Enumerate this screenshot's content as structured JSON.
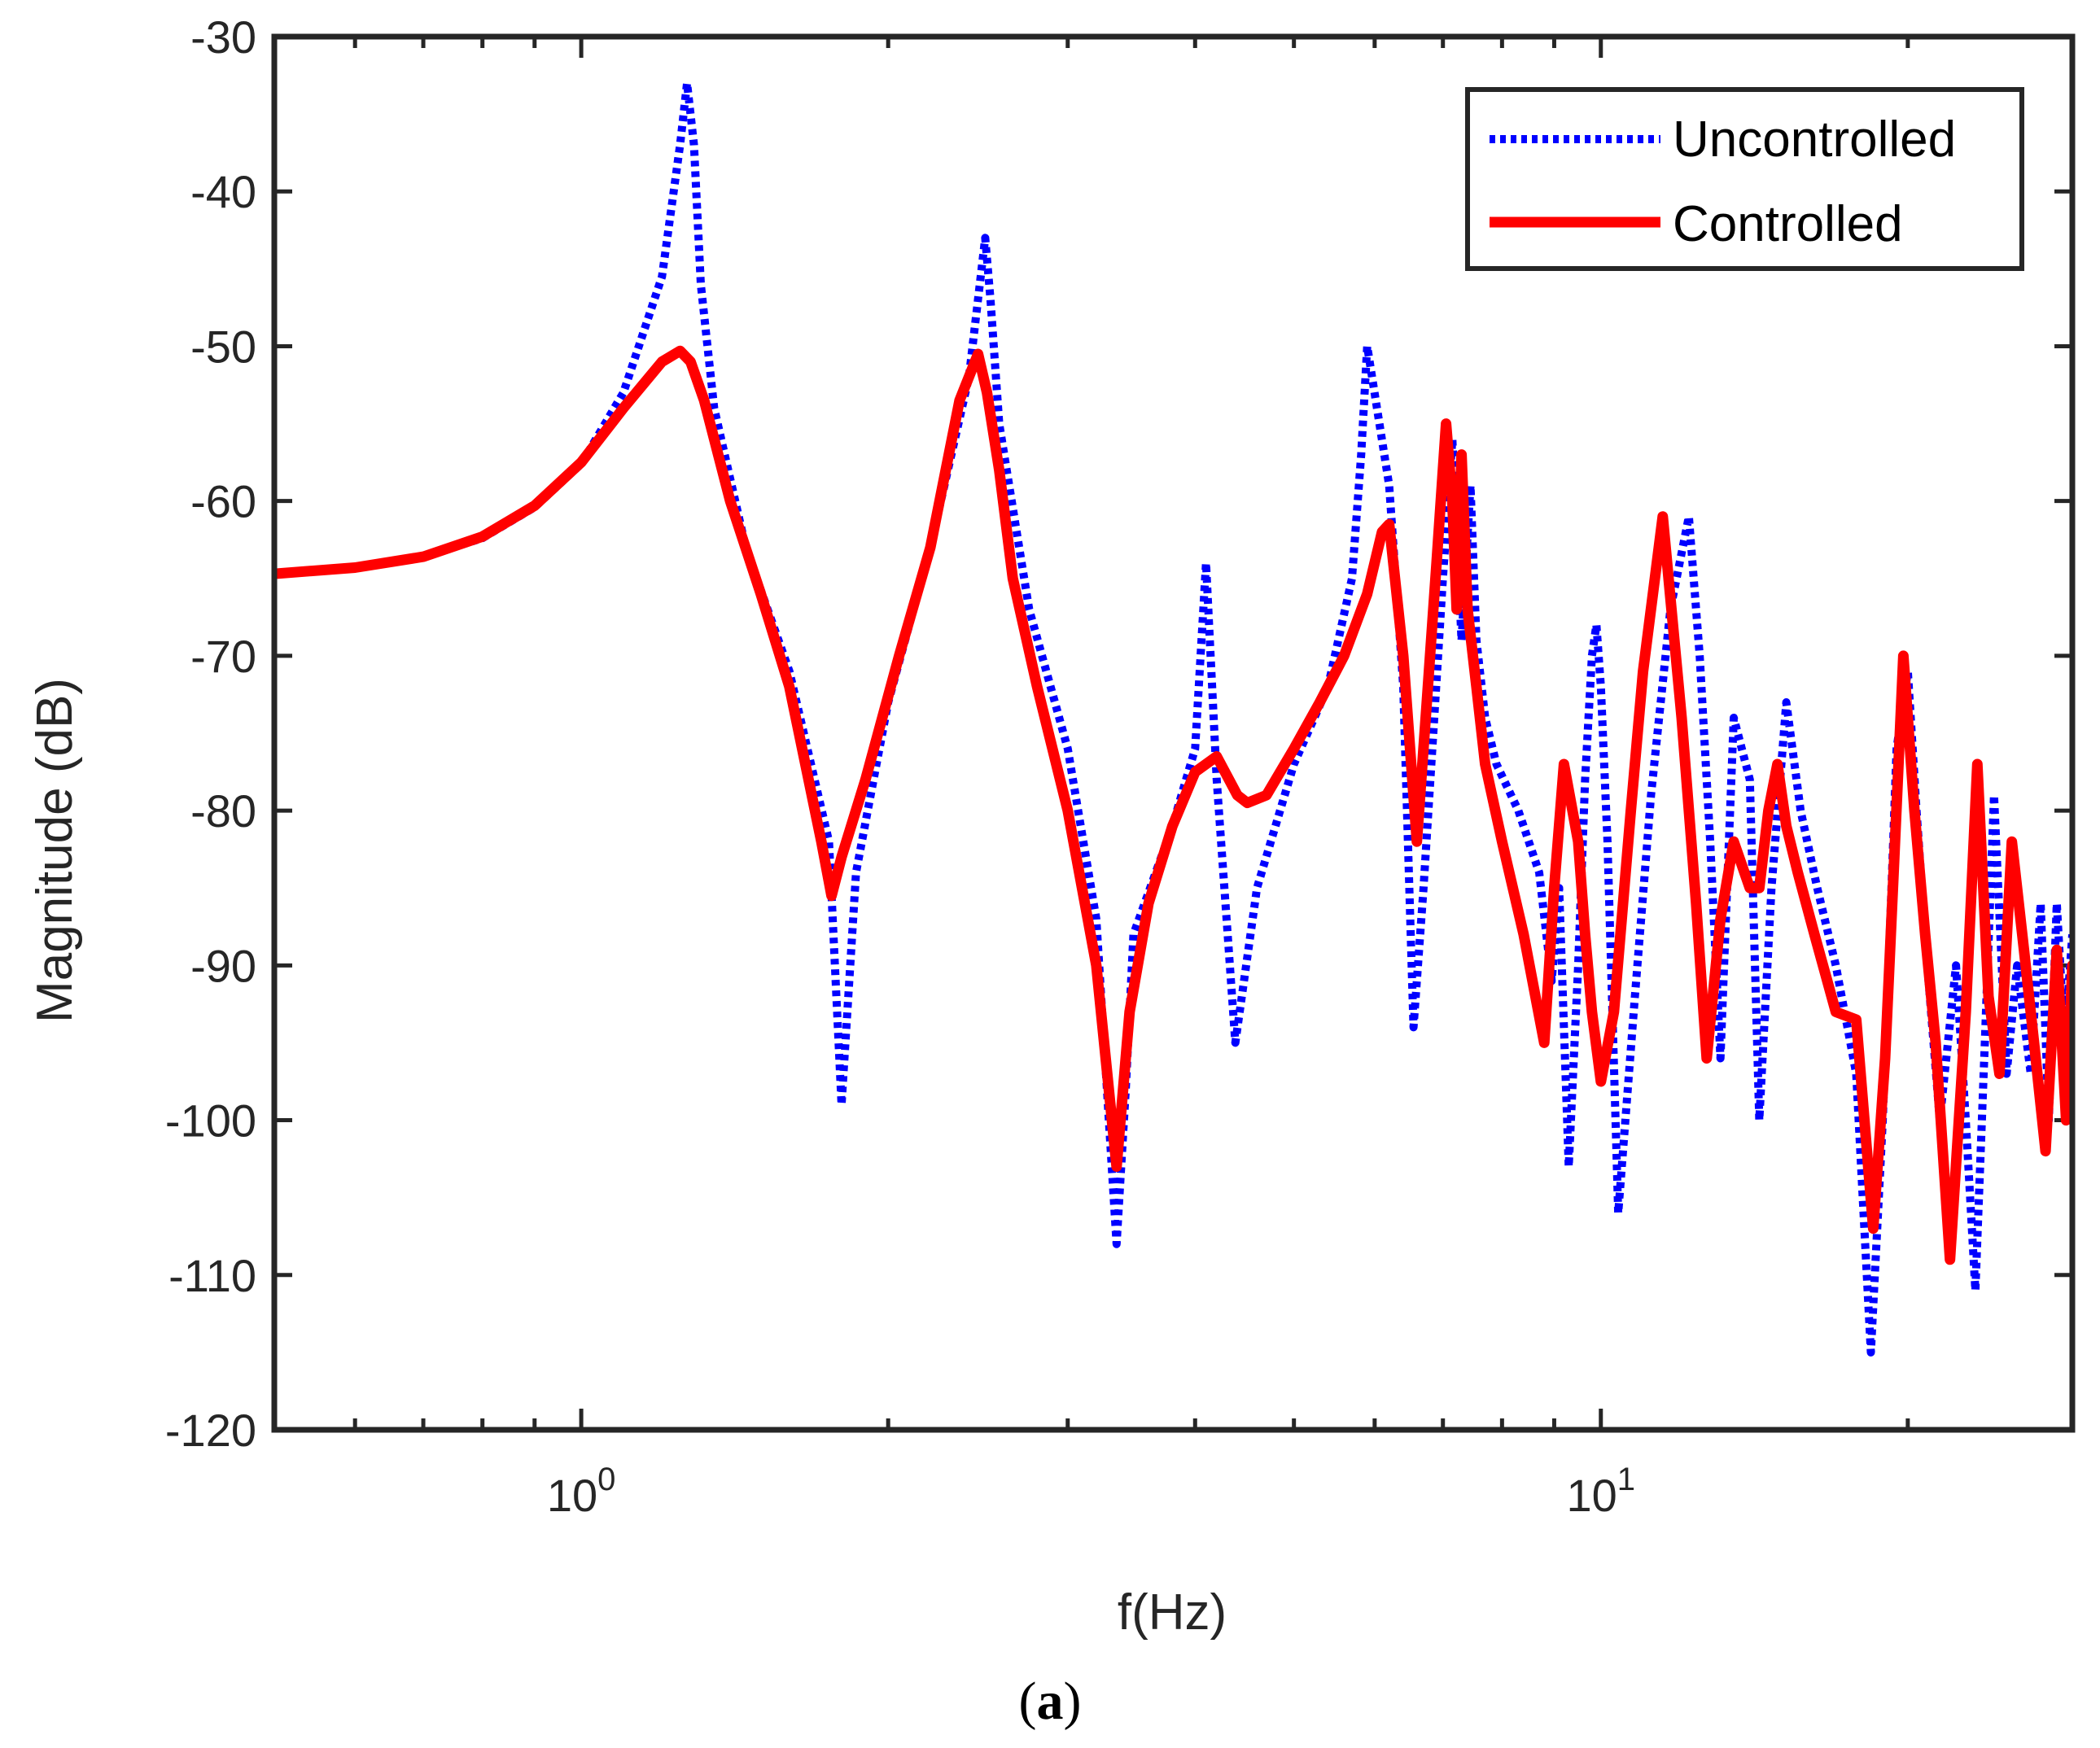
{
  "chart_data": {
    "type": "line",
    "title": "",
    "xlabel": "f(Hz)",
    "ylabel": "Magnitude (dB)",
    "xscale": "log",
    "xlim": [
      0.5,
      29
    ],
    "ylim": [
      -120,
      -30
    ],
    "grid": false,
    "legend_position": "top-right",
    "caption": {
      "open": "(",
      "letter": "a",
      "close": ")"
    },
    "y_ticks": [
      -30,
      -40,
      -50,
      -60,
      -70,
      -80,
      -90,
      -100,
      -110,
      -120
    ],
    "y_tick_labels": [
      "-30",
      "-40",
      "-50",
      "-60",
      "-70",
      "-80",
      "-90",
      "-100",
      "-110",
      "-120"
    ],
    "x_ticks": [
      {
        "value": 1,
        "base": "10",
        "exponent": "0"
      },
      {
        "value": 10,
        "base": "10",
        "exponent": "1"
      }
    ],
    "series": [
      {
        "name": "Uncontrolled",
        "color": "#0000ff",
        "style": "dotted",
        "x": [
          0.5,
          0.6,
          0.7,
          0.8,
          0.9,
          1.0,
          1.1,
          1.2,
          1.25,
          1.27,
          1.29,
          1.31,
          1.35,
          1.45,
          1.6,
          1.75,
          1.8,
          1.86,
          2.0,
          2.2,
          2.4,
          2.49,
          2.52,
          2.57,
          2.75,
          3.0,
          3.2,
          3.35,
          3.42,
          3.48,
          3.8,
          4.0,
          4.1,
          4.2,
          4.38,
          4.6,
          5.0,
          5.4,
          5.7,
          5.82,
          5.9,
          6.2,
          6.4,
          6.55,
          6.7,
          6.85,
          7.0,
          7.15,
          7.3,
          7.45,
          7.55,
          7.7,
          7.9,
          8.3,
          8.7,
          8.95,
          9.1,
          9.3,
          9.5,
          9.65,
          9.8,
          9.9,
          10.0,
          10.15,
          10.4,
          10.8,
          11.2,
          11.7,
          12.2,
          12.5,
          12.8,
          13.1,
          13.5,
          14.0,
          14.3,
          14.7,
          15.2,
          15.7,
          16.3,
          17.0,
          17.8,
          18.4,
          18.9,
          19.2,
          19.5,
          20.0,
          20.4,
          20.9,
          21.5,
          22.3,
          22.8,
          23.3,
          23.8,
          24.3,
          25.0,
          25.6,
          26.4,
          27.0,
          27.5,
          28.0,
          28.5,
          29.0
        ],
        "y": [
          -64.7,
          -64.3,
          -63.6,
          -62.4,
          -60.4,
          -57.6,
          -53.0,
          -45.5,
          -37.0,
          -33.0,
          -37.0,
          -46.0,
          -54.0,
          -63.0,
          -71.0,
          -82.0,
          -99.0,
          -84.0,
          -73.0,
          -63.0,
          -52.0,
          -43.0,
          -47.0,
          -55.0,
          -67.0,
          -76.0,
          -87.0,
          -108.0,
          -98.0,
          -88.0,
          -81.0,
          -76.0,
          -64.0,
          -78.0,
          -95.0,
          -85.0,
          -77.0,
          -72.0,
          -65.0,
          -57.0,
          -50.0,
          -59.0,
          -72.0,
          -94.0,
          -85.0,
          -75.0,
          -65.0,
          -56.0,
          -69.0,
          -59.0,
          -69.0,
          -74.0,
          -77.0,
          -80.0,
          -84.0,
          -91.0,
          -85.0,
          -103.0,
          -90.0,
          -78.0,
          -70.0,
          -68.0,
          -72.0,
          -82.0,
          -106.0,
          -92.0,
          -79.0,
          -67.0,
          -61.0,
          -70.0,
          -82.0,
          -96.0,
          -74.0,
          -78.0,
          -100.0,
          -85.0,
          -73.0,
          -80.0,
          -85.0,
          -90.0,
          -97.0,
          -115.0,
          -100.0,
          -88.0,
          -76.0,
          -71.0,
          -80.0,
          -90.0,
          -100.0,
          -90.0,
          -100.0,
          -111.0,
          -95.0,
          -79.0,
          -97.0,
          -90.0,
          -97.0,
          -86.0,
          -100.0,
          -86.0,
          -95.0,
          -88.0
        ]
      },
      {
        "name": "Controlled",
        "color": "#ff0000",
        "style": "solid",
        "x": [
          0.5,
          0.6,
          0.7,
          0.8,
          0.9,
          1.0,
          1.1,
          1.2,
          1.25,
          1.28,
          1.32,
          1.4,
          1.5,
          1.6,
          1.72,
          1.76,
          1.8,
          1.9,
          2.05,
          2.2,
          2.35,
          2.45,
          2.5,
          2.57,
          2.65,
          2.8,
          3.0,
          3.2,
          3.35,
          3.45,
          3.6,
          3.8,
          4.0,
          4.2,
          4.4,
          4.5,
          4.7,
          5.0,
          5.3,
          5.6,
          5.9,
          6.1,
          6.2,
          6.4,
          6.6,
          6.75,
          6.9,
          7.05,
          7.15,
          7.22,
          7.3,
          7.4,
          7.55,
          7.7,
          8.0,
          8.4,
          8.8,
          9.0,
          9.2,
          9.5,
          9.65,
          9.8,
          10.0,
          10.3,
          10.7,
          11.0,
          11.5,
          12.0,
          12.4,
          12.7,
          13.1,
          13.5,
          14.0,
          14.3,
          14.6,
          14.9,
          15.2,
          15.6,
          16.2,
          17.0,
          17.8,
          18.5,
          19.0,
          19.4,
          19.8,
          20.3,
          20.8,
          21.3,
          22.0,
          22.8,
          23.4,
          24.0,
          24.6,
          25.3,
          26.0,
          26.7,
          27.3,
          28.0,
          28.6,
          29.0
        ],
        "y": [
          -64.7,
          -64.3,
          -63.6,
          -62.3,
          -60.3,
          -57.5,
          -54.0,
          -51.0,
          -50.3,
          -51.0,
          -53.5,
          -60.0,
          -66.0,
          -72.0,
          -82.0,
          -85.5,
          -83.0,
          -78.0,
          -70.0,
          -63.0,
          -53.5,
          -50.5,
          -53.0,
          -58.0,
          -65.0,
          -72.0,
          -80.0,
          -90.0,
          -103.0,
          -93.0,
          -86.0,
          -81.0,
          -77.5,
          -76.5,
          -79.0,
          -79.5,
          -79.0,
          -76.0,
          -73.0,
          -70.0,
          -66.0,
          -62.0,
          -61.5,
          -70.0,
          -82.0,
          -73.0,
          -64.0,
          -55.0,
          -60.0,
          -67.0,
          -57.0,
          -67.0,
          -72.0,
          -77.0,
          -82.0,
          -88.0,
          -95.0,
          -85.0,
          -77.0,
          -82.0,
          -88.0,
          -93.0,
          -97.5,
          -93.0,
          -80.0,
          -71.0,
          -61.0,
          -74.0,
          -86.0,
          -96.0,
          -87.0,
          -82.0,
          -85.0,
          -85.0,
          -80.0,
          -77.0,
          -81.0,
          -84.0,
          -88.0,
          -93.0,
          -93.5,
          -107.0,
          -96.0,
          -83.0,
          -70.0,
          -80.0,
          -88.0,
          -95.0,
          -109.0,
          -93.0,
          -77.0,
          -92.0,
          -97.0,
          -82.0,
          -89.0,
          -96.0,
          -102.0,
          -89.0,
          -100.0,
          -90.0
        ]
      }
    ]
  }
}
